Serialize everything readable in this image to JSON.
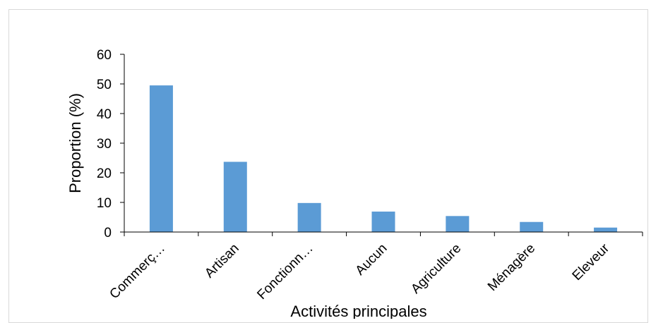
{
  "chart_data": {
    "type": "bar",
    "categories": [
      "Commerç…",
      "Artisan",
      "Fonctionn…",
      "Aucun",
      "Agriculture",
      "Ménagère",
      "Eleveur"
    ],
    "values": [
      49.5,
      23.7,
      9.8,
      6.9,
      5.4,
      3.4,
      1.5
    ],
    "xlabel": "Activités principales",
    "ylabel": "Proportion (%)",
    "ylim": [
      0,
      60
    ],
    "yticks": [
      0,
      10,
      20,
      30,
      40,
      50,
      60
    ],
    "bar_color": "#5b9bd5",
    "axis_color": "#000000",
    "grid": false,
    "legend": "none"
  }
}
